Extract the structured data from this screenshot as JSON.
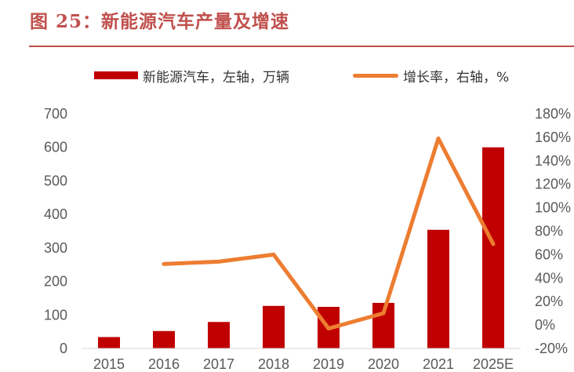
{
  "title": "图 25：新能源汽车产量及增速",
  "legend": {
    "bar_label": "新能源汽车，左轴，万辆",
    "line_label": "增长率，右轴，%"
  },
  "colors": {
    "bar": "#c00000",
    "line": "#ed7d31",
    "title": "#c0504d"
  },
  "chart_data": {
    "type": "bar",
    "categories": [
      "2015",
      "2016",
      "2017",
      "2018",
      "2019",
      "2020",
      "2021",
      "2025E"
    ],
    "series": [
      {
        "name": "新能源汽车，左轴，万辆",
        "type": "bar",
        "axis": "left",
        "values": [
          34,
          52,
          79,
          127,
          124,
          136,
          354,
          600
        ]
      },
      {
        "name": "增长率，右轴，%",
        "type": "line",
        "axis": "right",
        "values": [
          null,
          52,
          54,
          60,
          -3,
          10,
          159,
          69
        ]
      }
    ],
    "y_left": {
      "min": 0,
      "max": 700,
      "ticks": [
        0,
        100,
        200,
        300,
        400,
        500,
        600,
        700
      ]
    },
    "y_right": {
      "min": -20,
      "max": 180,
      "ticks": [
        "-20%",
        "0%",
        "20%",
        "40%",
        "60%",
        "80%",
        "100%",
        "120%",
        "140%",
        "160%",
        "180%"
      ]
    },
    "grid": false,
    "legend_position": "top"
  }
}
